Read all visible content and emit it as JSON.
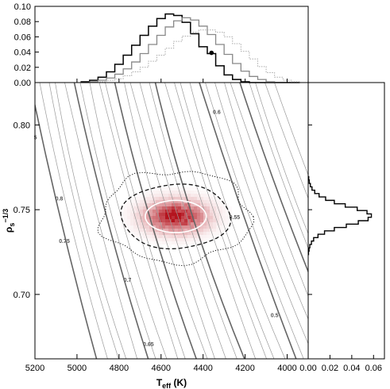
{
  "chart_data": [
    {
      "id": "main",
      "type": "scatter",
      "description_free": true,
      "xlabel": "T",
      "xlabel_sub": "eff",
      "xlabel_unit": "(K)",
      "ylabel": "ρ",
      "ylabel_sub": "s",
      "ylabel_sup": "1/3",
      "xlim": [
        5200,
        3900
      ],
      "ylim": [
        0.662,
        0.825
      ],
      "xticks": [
        5200,
        5000,
        4800,
        4600,
        4400,
        4200,
        4000
      ],
      "yticks": [
        0.7,
        0.75,
        0.8
      ],
      "ytick_labels": [
        "0.70",
        "0.75",
        "0.80"
      ],
      "density_center": {
        "teff": 4530,
        "rho": 0.746
      },
      "contours": [
        {
          "level": "1-sigma",
          "style": "solid-white",
          "teff_halfwidth": 145,
          "rho_halfwidth": 0.0095
        },
        {
          "level": "2-sigma",
          "style": "dashed-black",
          "teff_halfwidth": 260,
          "rho_halfwidth": 0.019
        },
        {
          "level": "3-sigma",
          "style": "dotted-black",
          "teff_halfwidth": 355,
          "rho_halfwidth": 0.027
        }
      ],
      "isochrone_labels": [
        {
          "text": "0.6",
          "teff": 4335,
          "rho": 0.8065
        },
        {
          "text": "0.8",
          "teff": 5085,
          "rho": 0.7555
        },
        {
          "text": "0.55",
          "teff": 4250,
          "rho": 0.7445
        },
        {
          "text": "0.75",
          "teff": 5060,
          "rho": 0.7305
        },
        {
          "text": "0.7",
          "teff": 4760,
          "rho": 0.7075
        },
        {
          "text": "0.5",
          "teff": 4060,
          "rho": 0.6865
        },
        {
          "text": "0.65",
          "teff": 4660,
          "rho": 0.6695
        },
        {
          "text": "5",
          "teff": 5198,
          "rho": 0.7915
        }
      ]
    },
    {
      "id": "top-histogram",
      "type": "line",
      "xlim": [
        5200,
        3900
      ],
      "ylim": [
        0,
        0.1
      ],
      "yticks": [
        0.0,
        0.02,
        0.04,
        0.06,
        0.08,
        0.1
      ],
      "ytick_labels": [
        "0.00",
        "0.02",
        "0.04",
        "0.06",
        "0.08",
        "0.10"
      ],
      "x": [
        4960,
        4920,
        4880,
        4840,
        4800,
        4760,
        4720,
        4680,
        4640,
        4600,
        4560,
        4520,
        4480,
        4440,
        4400,
        4360,
        4320,
        4280,
        4240,
        4200,
        4160,
        4120,
        4080,
        4040,
        4000,
        3960
      ],
      "series": [
        {
          "style": "black-solid",
          "values": [
            0.001,
            0.003,
            0.007,
            0.014,
            0.024,
            0.036,
            0.049,
            0.062,
            0.074,
            0.084,
            0.09,
            0.088,
            0.079,
            0.064,
            0.047,
            0.038,
            0.022,
            0.01,
            0.004,
            0.001,
            0.0,
            0.0,
            0.0,
            0.0,
            0.0,
            0.0
          ]
        },
        {
          "style": "grey-solid",
          "values": [
            0.0,
            0.001,
            0.003,
            0.006,
            0.011,
            0.018,
            0.027,
            0.038,
            0.05,
            0.062,
            0.073,
            0.081,
            0.085,
            0.082,
            0.074,
            0.063,
            0.05,
            0.037,
            0.025,
            0.015,
            0.008,
            0.004,
            0.001,
            0.0,
            0.0,
            0.0
          ]
        },
        {
          "style": "grey-dotted",
          "values": [
            0.0,
            0.0,
            0.001,
            0.003,
            0.005,
            0.009,
            0.014,
            0.02,
            0.028,
            0.036,
            0.045,
            0.054,
            0.061,
            0.066,
            0.069,
            0.069,
            0.066,
            0.06,
            0.051,
            0.041,
            0.031,
            0.021,
            0.013,
            0.007,
            0.003,
            0.001
          ]
        }
      ],
      "marker": {
        "teff": 4360,
        "value": 0.039
      }
    },
    {
      "id": "right-histogram",
      "type": "line",
      "orientation": "horizontal",
      "xlim": [
        0,
        0.07
      ],
      "xticks": [
        0.0,
        0.02,
        0.04,
        0.06
      ],
      "xtick_labels": [
        "0.00",
        "0.02",
        "0.04",
        "0.06"
      ],
      "ylim": [
        0.662,
        0.825
      ],
      "y": [
        0.7685,
        0.7665,
        0.7645,
        0.7625,
        0.7605,
        0.7585,
        0.7565,
        0.7545,
        0.7525,
        0.7505,
        0.7485,
        0.7465,
        0.7445,
        0.7425,
        0.7405,
        0.7385,
        0.7365,
        0.7345,
        0.7325,
        0.7305,
        0.7285,
        0.7265,
        0.7245
      ],
      "values": [
        0.0005,
        0.001,
        0.002,
        0.0035,
        0.006,
        0.01,
        0.016,
        0.024,
        0.034,
        0.045,
        0.054,
        0.058,
        0.055,
        0.046,
        0.035,
        0.024,
        0.015,
        0.009,
        0.005,
        0.003,
        0.0015,
        0.0008,
        0.0003
      ]
    }
  ]
}
